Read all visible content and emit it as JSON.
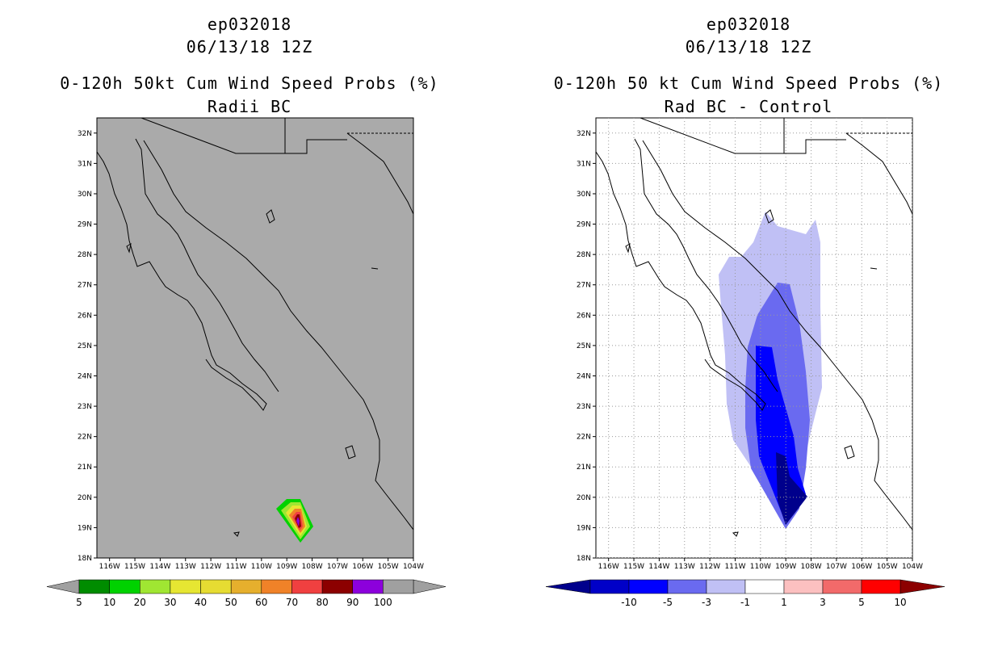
{
  "left_panel": {
    "storm_id": "ep032018",
    "datetime": "06/13/18 12Z",
    "title_line1": "0-120h 50kt Cum Wind Speed Probs (%)",
    "title_line2": "Radii BC",
    "lat_labels": [
      "32N",
      "31N",
      "30N",
      "29N",
      "28N",
      "27N",
      "26N",
      "25N",
      "24N",
      "23N",
      "22N",
      "21N",
      "20N",
      "19N",
      "18N"
    ],
    "lon_labels": [
      "116W",
      "115W",
      "114W",
      "113W",
      "112W",
      "111W",
      "110W",
      "109W",
      "108W",
      "107W",
      "106W",
      "105W",
      "104W"
    ],
    "colorbar": {
      "labels": [
        "5",
        "10",
        "20",
        "30",
        "40",
        "50",
        "60",
        "70",
        "80",
        "90",
        "100"
      ],
      "colors": [
        "#008c00",
        "#00d200",
        "#a0e632",
        "#e6e632",
        "#e6dc32",
        "#e6af2d",
        "#f08228",
        "#f04040",
        "#8c0000",
        "#8c00dc",
        "#a0a0a0"
      ],
      "end_color": "#a0a0a0"
    },
    "map_background": "#aaaaaa"
  },
  "right_panel": {
    "storm_id": "ep032018",
    "datetime": "06/13/18 12Z",
    "title_line1": "0-120h 50 kt Cum Wind Speed Probs (%)",
    "title_line2": "Rad BC - Control",
    "lat_labels": [
      "32N",
      "31N",
      "30N",
      "29N",
      "28N",
      "27N",
      "26N",
      "25N",
      "24N",
      "23N",
      "22N",
      "21N",
      "20N",
      "19N",
      "18N"
    ],
    "lon_labels": [
      "116W",
      "115W",
      "114W",
      "113W",
      "112W",
      "111W",
      "110W",
      "109W",
      "108W",
      "107W",
      "106W",
      "105W",
      "104W"
    ],
    "colorbar": {
      "labels": [
        "-10",
        "-5",
        "-3",
        "-1",
        "1",
        "3",
        "5",
        "10"
      ],
      "colors": [
        "#0000c8",
        "#0000ff",
        "#6a6af0",
        "#c0c0f5",
        "#ffffff",
        "#fcc0c0",
        "#f26a6a",
        "#ff0000"
      ],
      "low_end_color": "#00008c",
      "high_end_color": "#8c0000"
    },
    "map_background": "#ffffff"
  }
}
